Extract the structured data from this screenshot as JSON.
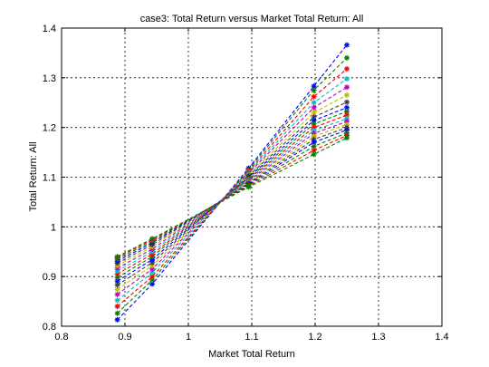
{
  "chart_data": {
    "type": "line",
    "title": "case3: Total Return versus Market Total Return: All",
    "xlabel": "Market Total Return",
    "ylabel": "Total Return: All",
    "xlim": [
      0.8,
      1.4
    ],
    "ylim": [
      0.8,
      1.4
    ],
    "xticks": [
      "0.8",
      "0.9",
      "1",
      "1.1",
      "1.2",
      "1.3",
      "1.4"
    ],
    "yticks": [
      "0.8",
      "0.9",
      "1",
      "1.1",
      "1.2",
      "1.3",
      "1.4"
    ],
    "grid": true,
    "legend": "none",
    "marker": "asterisk",
    "line_style": "dashed",
    "x": [
      0.888,
      0.943,
      1.095,
      1.198,
      1.25
    ],
    "series": [
      {
        "color": "#0000ff",
        "values": [
          0.813,
          0.885,
          1.118,
          1.283,
          1.366
        ]
      },
      {
        "color": "#008000",
        "values": [
          0.826,
          0.893,
          1.115,
          1.275,
          1.34
        ]
      },
      {
        "color": "#ff0000",
        "values": [
          0.84,
          0.9,
          1.112,
          1.262,
          1.318
        ]
      },
      {
        "color": "#00bfbf",
        "values": [
          0.852,
          0.908,
          1.11,
          1.25,
          1.298
        ]
      },
      {
        "color": "#bf00bf",
        "values": [
          0.864,
          0.915,
          1.108,
          1.24,
          1.281
        ]
      },
      {
        "color": "#bfbf00",
        "values": [
          0.874,
          0.922,
          1.105,
          1.23,
          1.265
        ]
      },
      {
        "color": "#404040",
        "values": [
          0.883,
          0.928,
          1.103,
          1.221,
          1.251
        ]
      },
      {
        "color": "#0000ff",
        "values": [
          0.891,
          0.934,
          1.1,
          1.214,
          1.24
        ]
      },
      {
        "color": "#008000",
        "values": [
          0.898,
          0.94,
          1.098,
          1.207,
          1.232
        ]
      },
      {
        "color": "#ff0000",
        "values": [
          0.905,
          0.945,
          1.096,
          1.2,
          1.225
        ]
      },
      {
        "color": "#00bfbf",
        "values": [
          0.911,
          0.95,
          1.094,
          1.194,
          1.218
        ]
      },
      {
        "color": "#bf00bf",
        "values": [
          0.917,
          0.955,
          1.092,
          1.188,
          1.212
        ]
      },
      {
        "color": "#bfbf00",
        "values": [
          0.922,
          0.96,
          1.09,
          1.182,
          1.206
        ]
      },
      {
        "color": "#404040",
        "values": [
          0.927,
          0.964,
          1.088,
          1.176,
          1.2
        ]
      },
      {
        "color": "#0000ff",
        "values": [
          0.931,
          0.968,
          1.086,
          1.17,
          1.195
        ]
      },
      {
        "color": "#008000",
        "values": [
          0.935,
          0.971,
          1.084,
          1.162,
          1.189
        ]
      },
      {
        "color": "#ff0000",
        "values": [
          0.938,
          0.974,
          1.082,
          1.154,
          1.184
        ]
      },
      {
        "color": "#008000",
        "values": [
          0.94,
          0.976,
          1.08,
          1.146,
          1.179
        ]
      }
    ]
  }
}
